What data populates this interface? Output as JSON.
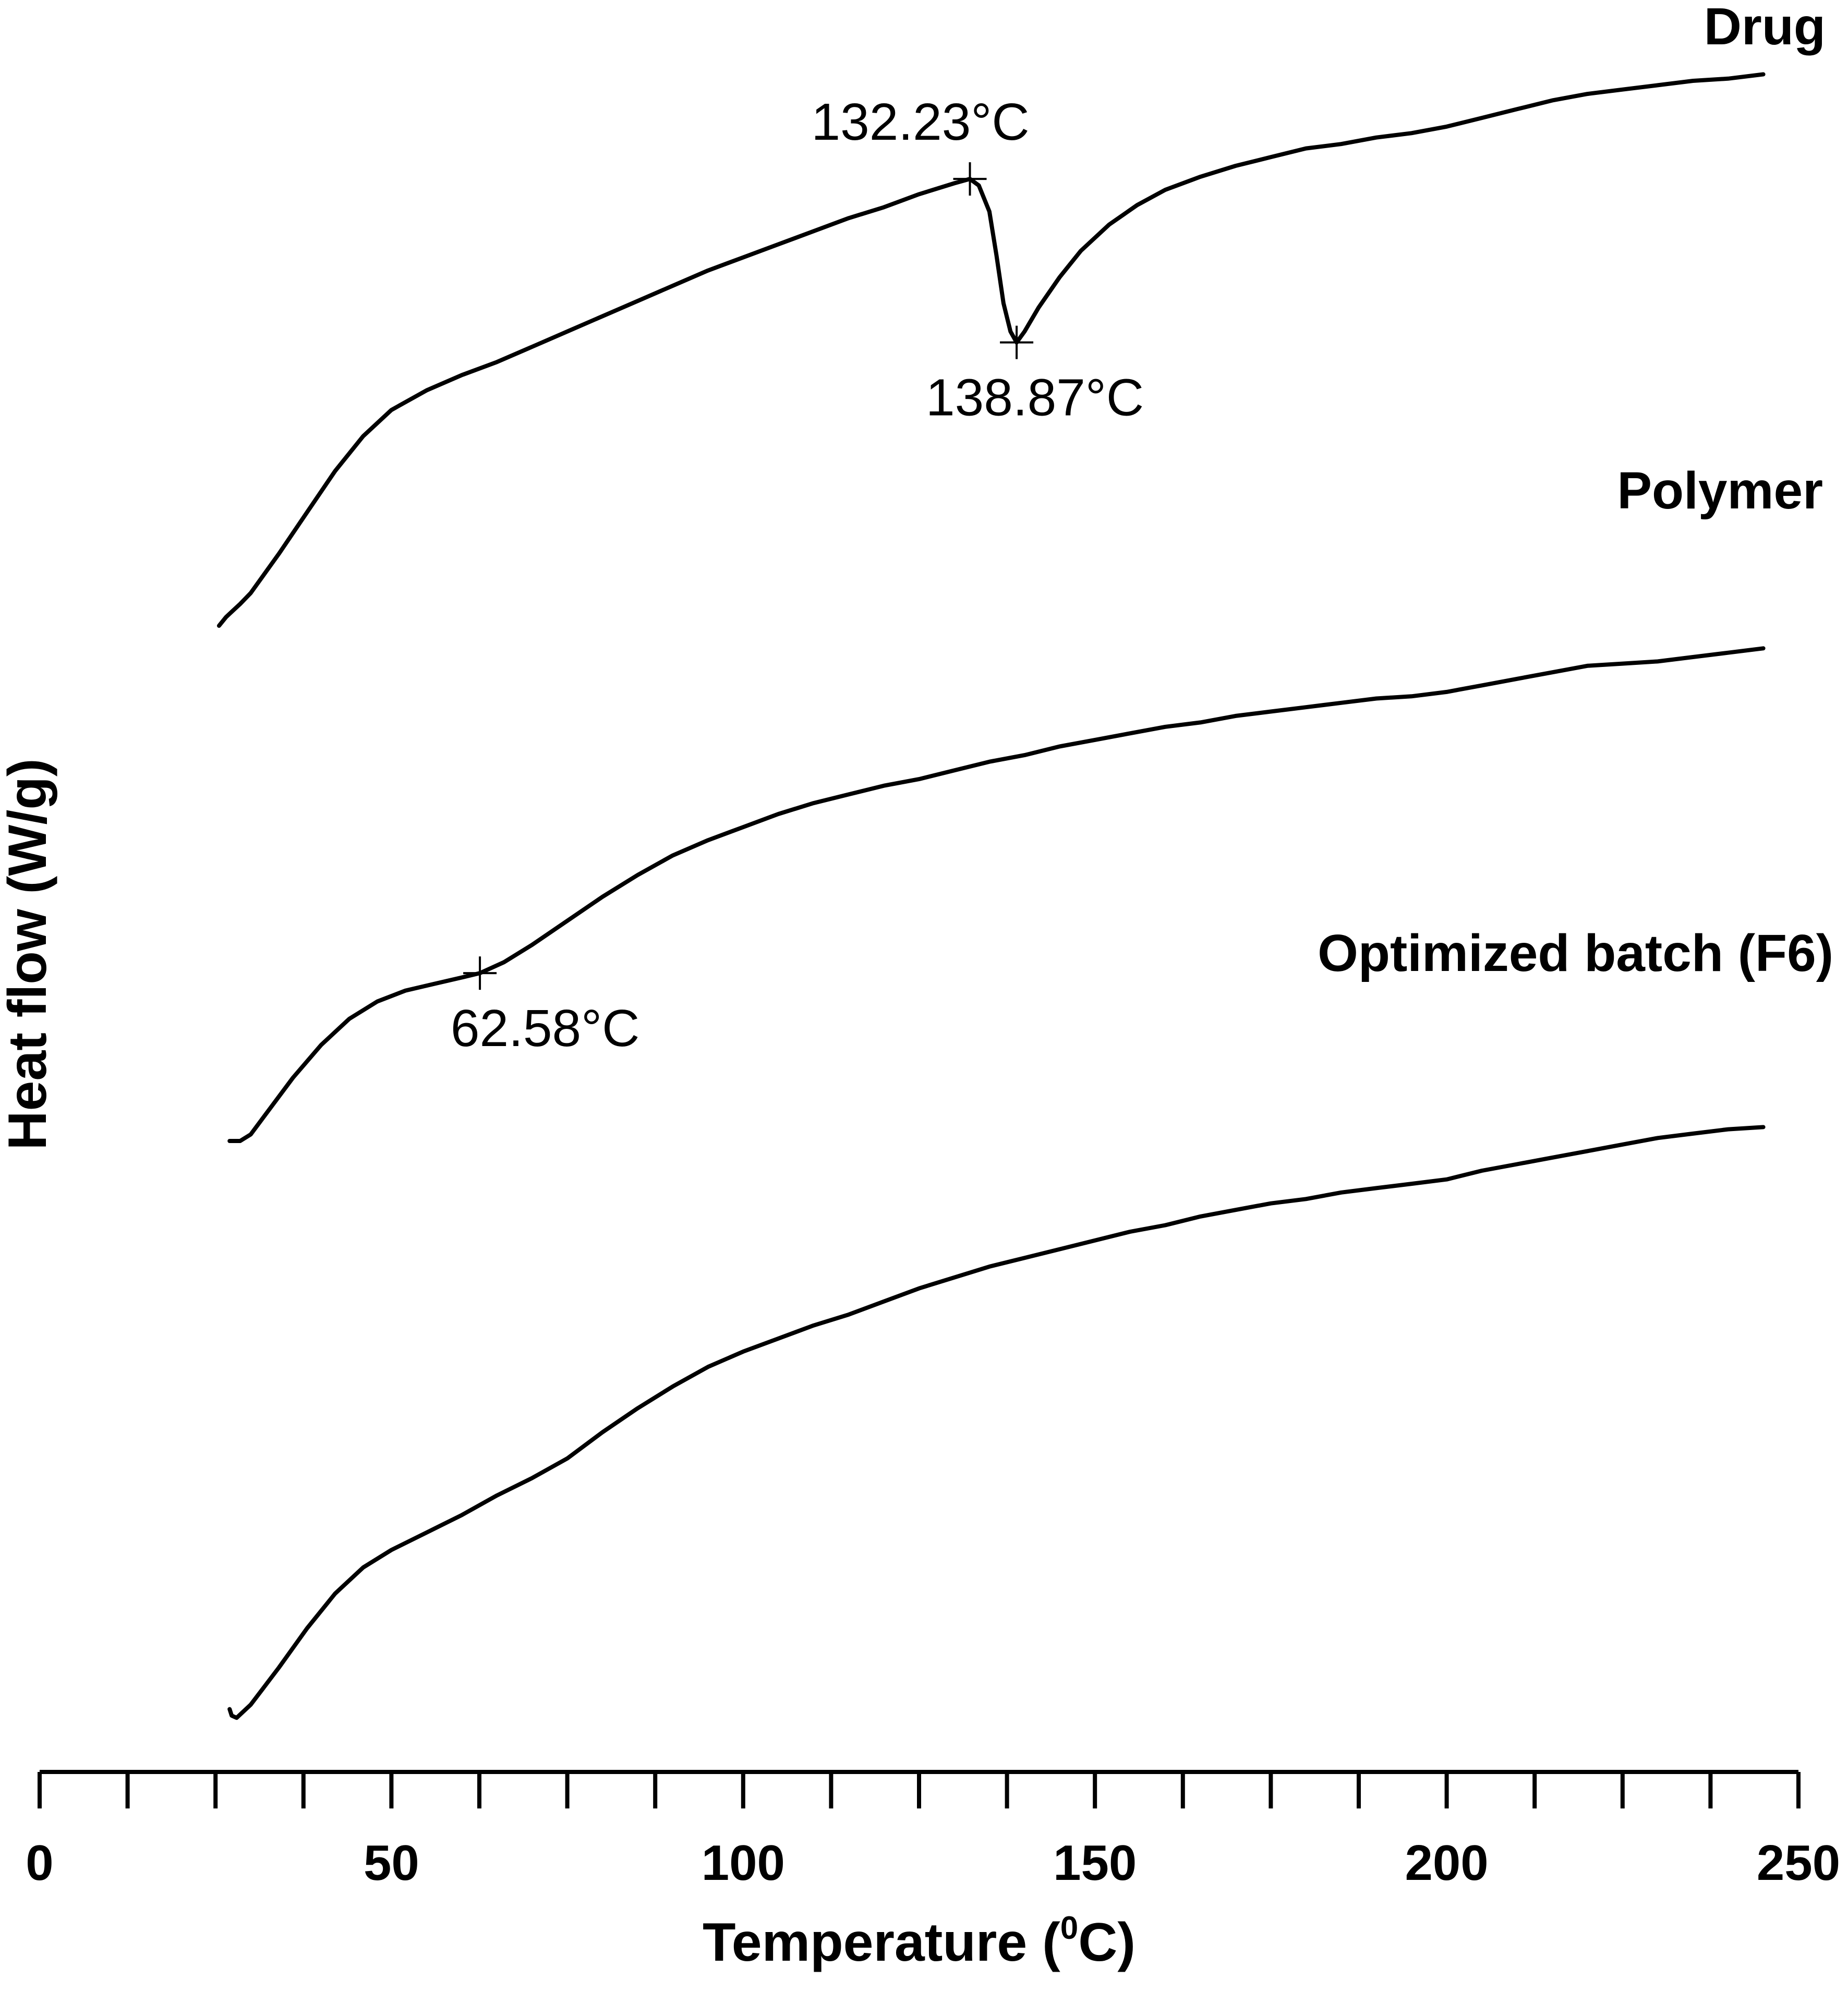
{
  "chart_data": {
    "type": "line",
    "title": "",
    "xlabel": "Temperature  (",
    "xlabel_sup": "0",
    "xlabel_end": "C)",
    "ylabel": "Heat flow (W/g)",
    "xlim": [
      0,
      250
    ],
    "x_ticks": [
      "0",
      "50",
      "100",
      "150",
      "200",
      "250"
    ],
    "minor_tick_step": 12.5,
    "grid": false,
    "legend": "none",
    "series": [
      {
        "name": "Drug",
        "points": [
          [
            25.5,
            0.0
          ],
          [
            26.5,
            0.04
          ],
          [
            27.5,
            0.07
          ],
          [
            28.5,
            0.1
          ],
          [
            30,
            0.15
          ],
          [
            34,
            0.33
          ],
          [
            38,
            0.52
          ],
          [
            42,
            0.71
          ],
          [
            46,
            0.87
          ],
          [
            50,
            0.99
          ],
          [
            55,
            1.08
          ],
          [
            60,
            1.15
          ],
          [
            65,
            1.21
          ],
          [
            70,
            1.28
          ],
          [
            75,
            1.35
          ],
          [
            80,
            1.42
          ],
          [
            85,
            1.49
          ],
          [
            90,
            1.56
          ],
          [
            95,
            1.63
          ],
          [
            100,
            1.69
          ],
          [
            105,
            1.75
          ],
          [
            110,
            1.81
          ],
          [
            115,
            1.87
          ],
          [
            120,
            1.92
          ],
          [
            125,
            1.98
          ],
          [
            130,
            2.03
          ],
          [
            132.23,
            2.05
          ],
          [
            133.5,
            2.02
          ],
          [
            135,
            1.9
          ],
          [
            136,
            1.7
          ],
          [
            137,
            1.48
          ],
          [
            138,
            1.35
          ],
          [
            138.87,
            1.3
          ],
          [
            140,
            1.35
          ],
          [
            142,
            1.46
          ],
          [
            145,
            1.6
          ],
          [
            148,
            1.72
          ],
          [
            152,
            1.84
          ],
          [
            156,
            1.93
          ],
          [
            160,
            2.0
          ],
          [
            165,
            2.06
          ],
          [
            170,
            2.11
          ],
          [
            175,
            2.15
          ],
          [
            180,
            2.19
          ],
          [
            185,
            2.21
          ],
          [
            190,
            2.24
          ],
          [
            195,
            2.26
          ],
          [
            200,
            2.29
          ],
          [
            205,
            2.33
          ],
          [
            210,
            2.37
          ],
          [
            215,
            2.41
          ],
          [
            220,
            2.44
          ],
          [
            225,
            2.46
          ],
          [
            230,
            2.48
          ],
          [
            235,
            2.5
          ],
          [
            240,
            2.51
          ],
          [
            245,
            2.53
          ]
        ]
      },
      {
        "name": "Polymer",
        "points": [
          [
            27,
            0.0
          ],
          [
            28.5,
            0.0
          ],
          [
            30,
            0.03
          ],
          [
            33,
            0.16
          ],
          [
            36,
            0.29
          ],
          [
            40,
            0.44
          ],
          [
            44,
            0.56
          ],
          [
            48,
            0.64
          ],
          [
            52,
            0.69
          ],
          [
            56,
            0.72
          ],
          [
            60,
            0.75
          ],
          [
            62.58,
            0.77
          ],
          [
            66,
            0.82
          ],
          [
            70,
            0.9
          ],
          [
            75,
            1.01
          ],
          [
            80,
            1.12
          ],
          [
            85,
            1.22
          ],
          [
            90,
            1.31
          ],
          [
            95,
            1.38
          ],
          [
            100,
            1.44
          ],
          [
            105,
            1.5
          ],
          [
            110,
            1.55
          ],
          [
            115,
            1.59
          ],
          [
            120,
            1.63
          ],
          [
            125,
            1.66
          ],
          [
            130,
            1.7
          ],
          [
            135,
            1.74
          ],
          [
            140,
            1.77
          ],
          [
            145,
            1.81
          ],
          [
            150,
            1.84
          ],
          [
            155,
            1.87
          ],
          [
            160,
            1.9
          ],
          [
            165,
            1.92
          ],
          [
            170,
            1.95
          ],
          [
            175,
            1.97
          ],
          [
            180,
            1.99
          ],
          [
            185,
            2.01
          ],
          [
            190,
            2.03
          ],
          [
            195,
            2.04
          ],
          [
            200,
            2.06
          ],
          [
            205,
            2.09
          ],
          [
            210,
            2.12
          ],
          [
            215,
            2.15
          ],
          [
            220,
            2.18
          ],
          [
            225,
            2.19
          ],
          [
            230,
            2.2
          ],
          [
            235,
            2.22
          ],
          [
            240,
            2.24
          ],
          [
            245,
            2.26
          ]
        ]
      },
      {
        "name": "Optimized batch (F6)",
        "points": [
          [
            27,
            0.03
          ],
          [
            27.3,
            0.0
          ],
          [
            28,
            -0.01
          ],
          [
            30,
            0.05
          ],
          [
            34,
            0.22
          ],
          [
            38,
            0.4
          ],
          [
            42,
            0.56
          ],
          [
            46,
            0.68
          ],
          [
            50,
            0.76
          ],
          [
            55,
            0.84
          ],
          [
            60,
            0.92
          ],
          [
            65,
            1.01
          ],
          [
            70,
            1.09
          ],
          [
            75,
            1.18
          ],
          [
            80,
            1.3
          ],
          [
            85,
            1.41
          ],
          [
            90,
            1.51
          ],
          [
            95,
            1.6
          ],
          [
            100,
            1.67
          ],
          [
            105,
            1.73
          ],
          [
            110,
            1.79
          ],
          [
            115,
            1.84
          ],
          [
            120,
            1.9
          ],
          [
            125,
            1.96
          ],
          [
            130,
            2.01
          ],
          [
            135,
            2.06
          ],
          [
            140,
            2.1
          ],
          [
            145,
            2.14
          ],
          [
            150,
            2.18
          ],
          [
            155,
            2.22
          ],
          [
            160,
            2.25
          ],
          [
            165,
            2.29
          ],
          [
            170,
            2.32
          ],
          [
            175,
            2.35
          ],
          [
            180,
            2.37
          ],
          [
            185,
            2.4
          ],
          [
            190,
            2.42
          ],
          [
            195,
            2.44
          ],
          [
            200,
            2.46
          ],
          [
            205,
            2.5
          ],
          [
            210,
            2.53
          ],
          [
            215,
            2.56
          ],
          [
            220,
            2.59
          ],
          [
            225,
            2.62
          ],
          [
            230,
            2.65
          ],
          [
            235,
            2.67
          ],
          [
            240,
            2.69
          ],
          [
            245,
            2.7
          ]
        ]
      }
    ],
    "annotations": [
      {
        "series": 0,
        "x": 132.23,
        "y": 2.05,
        "text": "132.23°C"
      },
      {
        "series": 0,
        "x": 138.87,
        "y": 1.3,
        "text": "138.87°C"
      },
      {
        "series": 1,
        "x": 62.58,
        "y": 0.77,
        "text": "62.58°C"
      }
    ]
  }
}
